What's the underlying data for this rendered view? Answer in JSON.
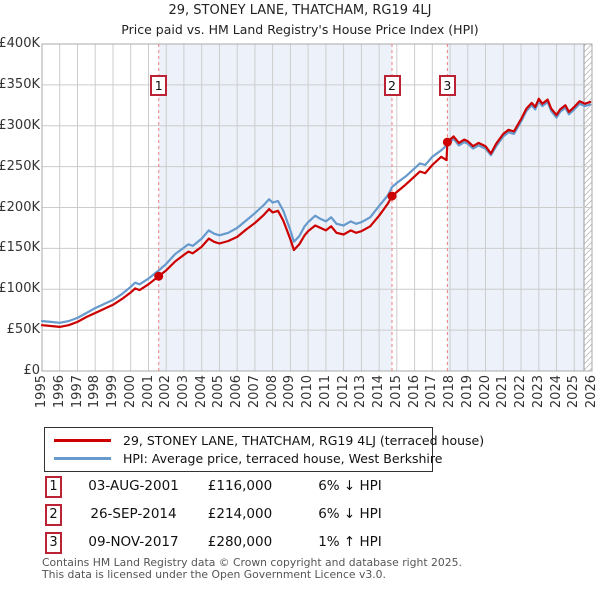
{
  "title": "29, STONEY LANE, THATCHAM, RG19 4LJ",
  "subtitle": "Price paid vs. HM Land Registry's House Price Index (HPI)",
  "colors": {
    "price_line": "#cc0000",
    "hpi_line": "#6699cc",
    "sale_dashed": "#f08080",
    "shade": "#edf2fa",
    "grid": "#cccccc",
    "plot_border": "#aaaaaa",
    "marker_border": "#bb2233",
    "hatch_line": "#bbbbbb"
  },
  "chart_data": {
    "type": "line",
    "xlim": [
      1995,
      2026
    ],
    "ylim": [
      0,
      400000
    ],
    "x_ticks": [
      "1995",
      "1996",
      "1997",
      "1998",
      "1999",
      "2000",
      "2001",
      "2002",
      "2003",
      "2004",
      "2005",
      "2006",
      "2007",
      "2008",
      "2009",
      "2010",
      "2011",
      "2012",
      "2013",
      "2014",
      "2015",
      "2016",
      "2017",
      "2018",
      "2019",
      "2020",
      "2021",
      "2022",
      "2023",
      "2024",
      "2025",
      "2026"
    ],
    "y_ticks": [
      "£0",
      "£50K",
      "£100K",
      "£150K",
      "£200K",
      "£250K",
      "£300K",
      "£350K",
      "£400K"
    ],
    "y_tick_step": 50000,
    "legend_position": "bottom",
    "grid": true,
    "series": [
      {
        "name": "price-paid",
        "label": "29, STONEY LANE, THATCHAM, RG19 4LJ (terraced house)",
        "color": "#cc0000",
        "points": [
          [
            1995.0,
            56000
          ],
          [
            1995.5,
            55000
          ],
          [
            1996.0,
            54000
          ],
          [
            1996.5,
            56000
          ],
          [
            1997.0,
            60000
          ],
          [
            1997.5,
            66000
          ],
          [
            1998.0,
            71000
          ],
          [
            1998.5,
            76000
          ],
          [
            1999.0,
            81000
          ],
          [
            1999.5,
            88000
          ],
          [
            2000.0,
            96000
          ],
          [
            2000.25,
            101000
          ],
          [
            2000.5,
            99000
          ],
          [
            2001.0,
            106000
          ],
          [
            2001.58,
            116000
          ],
          [
            2002.0,
            123000
          ],
          [
            2002.5,
            134000
          ],
          [
            2003.0,
            142000
          ],
          [
            2003.25,
            146000
          ],
          [
            2003.5,
            144000
          ],
          [
            2004.0,
            152000
          ],
          [
            2004.4,
            162000
          ],
          [
            2004.7,
            158000
          ],
          [
            2005.0,
            156000
          ],
          [
            2005.5,
            159000
          ],
          [
            2006.0,
            164000
          ],
          [
            2006.5,
            173000
          ],
          [
            2007.0,
            181000
          ],
          [
            2007.5,
            191000
          ],
          [
            2007.8,
            198000
          ],
          [
            2008.0,
            194000
          ],
          [
            2008.3,
            196000
          ],
          [
            2008.6,
            184000
          ],
          [
            2009.0,
            161000
          ],
          [
            2009.2,
            148000
          ],
          [
            2009.5,
            155000
          ],
          [
            2009.8,
            166000
          ],
          [
            2010.0,
            171000
          ],
          [
            2010.4,
            178000
          ],
          [
            2010.7,
            175000
          ],
          [
            2011.0,
            172000
          ],
          [
            2011.3,
            177000
          ],
          [
            2011.6,
            169000
          ],
          [
            2012.0,
            167000
          ],
          [
            2012.4,
            172000
          ],
          [
            2012.7,
            169000
          ],
          [
            2013.0,
            171000
          ],
          [
            2013.5,
            177000
          ],
          [
            2014.0,
            190000
          ],
          [
            2014.5,
            205000
          ],
          [
            2014.73,
            214000
          ],
          [
            2015.0,
            219000
          ],
          [
            2015.5,
            228000
          ],
          [
            2016.0,
            238000
          ],
          [
            2016.3,
            244000
          ],
          [
            2016.6,
            242000
          ],
          [
            2017.0,
            252000
          ],
          [
            2017.5,
            262000
          ],
          [
            2017.8,
            258000
          ],
          [
            2017.85,
            280000
          ],
          [
            2018.0,
            283000
          ],
          [
            2018.2,
            287000
          ],
          [
            2018.5,
            279000
          ],
          [
            2018.8,
            283000
          ],
          [
            2019.0,
            281000
          ],
          [
            2019.3,
            275000
          ],
          [
            2019.6,
            279000
          ],
          [
            2020.0,
            275000
          ],
          [
            2020.3,
            266000
          ],
          [
            2020.6,
            278000
          ],
          [
            2021.0,
            290000
          ],
          [
            2021.3,
            295000
          ],
          [
            2021.6,
            293000
          ],
          [
            2022.0,
            308000
          ],
          [
            2022.3,
            321000
          ],
          [
            2022.6,
            328000
          ],
          [
            2022.8,
            323000
          ],
          [
            2023.0,
            333000
          ],
          [
            2023.2,
            327000
          ],
          [
            2023.5,
            332000
          ],
          [
            2023.7,
            321000
          ],
          [
            2024.0,
            313000
          ],
          [
            2024.2,
            320000
          ],
          [
            2024.5,
            325000
          ],
          [
            2024.7,
            317000
          ],
          [
            2025.0,
            323000
          ],
          [
            2025.3,
            330000
          ],
          [
            2025.6,
            327000
          ],
          [
            2025.9,
            329000
          ]
        ]
      },
      {
        "name": "hpi",
        "label": "HPI: Average price, terraced house, West Berkshire",
        "color": "#6699cc",
        "points": [
          [
            1995.0,
            61000
          ],
          [
            1995.5,
            60000
          ],
          [
            1996.0,
            59000
          ],
          [
            1996.5,
            61000
          ],
          [
            1997.0,
            65000
          ],
          [
            1997.5,
            71000
          ],
          [
            1998.0,
            77000
          ],
          [
            1998.5,
            82000
          ],
          [
            1999.0,
            87000
          ],
          [
            1999.5,
            94000
          ],
          [
            2000.0,
            103000
          ],
          [
            2000.25,
            108000
          ],
          [
            2000.5,
            106000
          ],
          [
            2001.0,
            113000
          ],
          [
            2001.58,
            123000
          ],
          [
            2002.0,
            131000
          ],
          [
            2002.5,
            143000
          ],
          [
            2003.0,
            151000
          ],
          [
            2003.25,
            155000
          ],
          [
            2003.5,
            153000
          ],
          [
            2004.0,
            162000
          ],
          [
            2004.4,
            172000
          ],
          [
            2004.7,
            168000
          ],
          [
            2005.0,
            166000
          ],
          [
            2005.5,
            169000
          ],
          [
            2006.0,
            175000
          ],
          [
            2006.5,
            184000
          ],
          [
            2007.0,
            193000
          ],
          [
            2007.5,
            203000
          ],
          [
            2007.8,
            210000
          ],
          [
            2008.0,
            206000
          ],
          [
            2008.3,
            208000
          ],
          [
            2008.6,
            196000
          ],
          [
            2009.0,
            172000
          ],
          [
            2009.2,
            158000
          ],
          [
            2009.5,
            165000
          ],
          [
            2009.8,
            177000
          ],
          [
            2010.0,
            182000
          ],
          [
            2010.4,
            190000
          ],
          [
            2010.7,
            186000
          ],
          [
            2011.0,
            183000
          ],
          [
            2011.3,
            188000
          ],
          [
            2011.6,
            180000
          ],
          [
            2012.0,
            178000
          ],
          [
            2012.4,
            183000
          ],
          [
            2012.7,
            180000
          ],
          [
            2013.0,
            182000
          ],
          [
            2013.5,
            188000
          ],
          [
            2014.0,
            202000
          ],
          [
            2014.5,
            215000
          ],
          [
            2014.73,
            225000
          ],
          [
            2015.0,
            230000
          ],
          [
            2015.5,
            238000
          ],
          [
            2016.0,
            248000
          ],
          [
            2016.3,
            254000
          ],
          [
            2016.6,
            252000
          ],
          [
            2017.0,
            262000
          ],
          [
            2017.5,
            270000
          ],
          [
            2017.85,
            277000
          ],
          [
            2018.0,
            280000
          ],
          [
            2018.2,
            284000
          ],
          [
            2018.5,
            276000
          ],
          [
            2018.8,
            280000
          ],
          [
            2019.0,
            278000
          ],
          [
            2019.3,
            272000
          ],
          [
            2019.6,
            276000
          ],
          [
            2020.0,
            272000
          ],
          [
            2020.3,
            264000
          ],
          [
            2020.6,
            275000
          ],
          [
            2021.0,
            287000
          ],
          [
            2021.3,
            292000
          ],
          [
            2021.6,
            290000
          ],
          [
            2022.0,
            305000
          ],
          [
            2022.3,
            318000
          ],
          [
            2022.6,
            325000
          ],
          [
            2022.8,
            320000
          ],
          [
            2023.0,
            330000
          ],
          [
            2023.2,
            324000
          ],
          [
            2023.5,
            329000
          ],
          [
            2023.7,
            318000
          ],
          [
            2024.0,
            310000
          ],
          [
            2024.2,
            317000
          ],
          [
            2024.5,
            322000
          ],
          [
            2024.7,
            314000
          ],
          [
            2025.0,
            320000
          ],
          [
            2025.3,
            327000
          ],
          [
            2025.6,
            324000
          ],
          [
            2025.9,
            326000
          ]
        ]
      }
    ],
    "sales": [
      {
        "num": "1",
        "date": "03-AUG-2001",
        "year": 2001.58,
        "price": 116000,
        "delta": "6% ↓ HPI"
      },
      {
        "num": "2",
        "date": "26-SEP-2014",
        "year": 2014.73,
        "price": 214000,
        "delta": "6% ↓ HPI"
      },
      {
        "num": "3",
        "date": "09-NOV-2017",
        "year": 2017.85,
        "price": 280000,
        "delta": "1% ↑ HPI"
      }
    ],
    "shaded_bands": [
      [
        2001.58,
        2014.73
      ],
      [
        2017.85,
        2025.55
      ]
    ],
    "hatch_band": [
      2025.55,
      2026
    ]
  },
  "legend": {
    "entries": [
      {
        "label": "29, STONEY LANE, THATCHAM, RG19 4LJ (terraced house)"
      },
      {
        "label": "HPI: Average price, terraced house, West Berkshire"
      }
    ]
  },
  "table": {
    "rows": [
      {
        "num": "1",
        "date": "03-AUG-2001",
        "price": "£116,000",
        "delta": "6% ↓ HPI"
      },
      {
        "num": "2",
        "date": "26-SEP-2014",
        "price": "£214,000",
        "delta": "6% ↓ HPI"
      },
      {
        "num": "3",
        "date": "09-NOV-2017",
        "price": "£280,000",
        "delta": "1% ↑ HPI"
      }
    ]
  },
  "footer": {
    "line1": "Contains HM Land Registry data © Crown copyright and database right 2025.",
    "line2": "This data is licensed under the Open Government Licence v3.0."
  }
}
